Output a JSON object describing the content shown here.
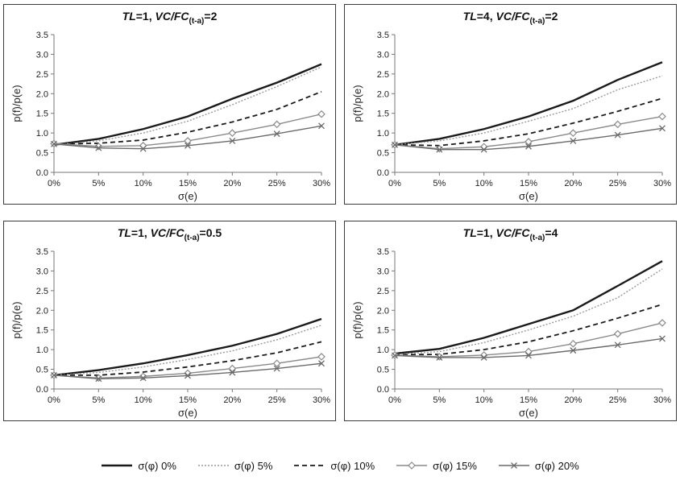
{
  "legend": [
    {
      "label": "σ(φ) 0%",
      "color": "#1a1a1a",
      "dash": "",
      "width": 2.4,
      "marker": "none"
    },
    {
      "label": "σ(φ) 5%",
      "color": "#9a9a9a",
      "dash": "2,2",
      "width": 1.4,
      "marker": "none"
    },
    {
      "label": "σ(φ) 10%",
      "color": "#1a1a1a",
      "dash": "6,4",
      "width": 1.8,
      "marker": "none"
    },
    {
      "label": "σ(φ) 15%",
      "color": "#8a8a8a",
      "dash": "",
      "width": 1.4,
      "marker": "diamond"
    },
    {
      "label": "σ(φ) 20%",
      "color": "#6a6a6a",
      "dash": "",
      "width": 1.4,
      "marker": "x"
    }
  ],
  "chart_data": [
    {
      "type": "line",
      "title": {
        "tl": "TL",
        "tl_val": "=1, ",
        "vc": "VC/FC",
        "sub": "(t-a)",
        "ratio": "=2"
      },
      "xlabel": "σ(e)",
      "ylabel": "p(f)/p(e)",
      "x": [
        0,
        5,
        10,
        15,
        20,
        25,
        30
      ],
      "xticks": [
        "0%",
        "5%",
        "10%",
        "15%",
        "20%",
        "25%",
        "30%"
      ],
      "yticks": [
        "0.0",
        "0.5",
        "1.0",
        "1.5",
        "2.0",
        "2.5",
        "3.0",
        "3.5"
      ],
      "ylim": [
        0,
        3.5
      ],
      "series": [
        {
          "name": "σ(φ) 0%",
          "values": [
            0.7,
            0.85,
            1.1,
            1.42,
            1.87,
            2.28,
            2.75
          ]
        },
        {
          "name": "σ(φ) 5%",
          "values": [
            0.7,
            0.8,
            1.0,
            1.3,
            1.72,
            2.18,
            2.68
          ]
        },
        {
          "name": "σ(φ) 10%",
          "values": [
            0.72,
            0.74,
            0.82,
            1.02,
            1.28,
            1.6,
            2.05
          ]
        },
        {
          "name": "σ(φ) 15%",
          "values": [
            0.73,
            0.66,
            0.68,
            0.8,
            1.0,
            1.22,
            1.48
          ]
        },
        {
          "name": "σ(φ) 20%",
          "values": [
            0.72,
            0.62,
            0.6,
            0.68,
            0.8,
            0.98,
            1.18
          ]
        }
      ]
    },
    {
      "type": "line",
      "title": {
        "tl": "TL",
        "tl_val": "=4, ",
        "vc": "VC/FC",
        "sub": "(t-a)",
        "ratio": "=2"
      },
      "xlabel": "σ(e)",
      "ylabel": "p(f)/p(e)",
      "x": [
        0,
        5,
        10,
        15,
        20,
        25,
        30
      ],
      "xticks": [
        "0%",
        "5%",
        "10%",
        "15%",
        "20%",
        "25%",
        "30%"
      ],
      "yticks": [
        "0.0",
        "0.5",
        "1.0",
        "1.5",
        "2.0",
        "2.5",
        "3.0",
        "3.5"
      ],
      "ylim": [
        0,
        3.5
      ],
      "series": [
        {
          "name": "σ(φ) 0%",
          "values": [
            0.7,
            0.85,
            1.1,
            1.42,
            1.82,
            2.35,
            2.8
          ]
        },
        {
          "name": "σ(φ) 5%",
          "values": [
            0.7,
            0.8,
            1.0,
            1.3,
            1.62,
            2.1,
            2.45
          ]
        },
        {
          "name": "σ(φ) 10%",
          "values": [
            0.7,
            0.68,
            0.8,
            0.98,
            1.25,
            1.55,
            1.88
          ]
        },
        {
          "name": "σ(φ) 15%",
          "values": [
            0.7,
            0.6,
            0.65,
            0.78,
            1.0,
            1.22,
            1.42
          ]
        },
        {
          "name": "σ(φ) 20%",
          "values": [
            0.7,
            0.58,
            0.58,
            0.66,
            0.8,
            0.95,
            1.12
          ]
        }
      ]
    },
    {
      "type": "line",
      "title": {
        "tl": "TL",
        "tl_val": "=1, ",
        "vc": "VC/FC",
        "sub": "(t-a)",
        "ratio": "=0.5"
      },
      "xlabel": "σ(e)",
      "ylabel": "p(f)/p(e)",
      "x": [
        0,
        5,
        10,
        15,
        20,
        25,
        30
      ],
      "xticks": [
        "0%",
        "5%",
        "10%",
        "15%",
        "20%",
        "25%",
        "30%"
      ],
      "yticks": [
        "0.0",
        "0.5",
        "1.0",
        "1.5",
        "2.0",
        "2.5",
        "3.0",
        "3.5"
      ],
      "ylim": [
        0,
        3.5
      ],
      "series": [
        {
          "name": "σ(φ) 0%",
          "values": [
            0.35,
            0.48,
            0.65,
            0.86,
            1.1,
            1.4,
            1.78
          ]
        },
        {
          "name": "σ(φ) 5%",
          "values": [
            0.35,
            0.42,
            0.56,
            0.75,
            0.97,
            1.25,
            1.62
          ]
        },
        {
          "name": "σ(φ) 10%",
          "values": [
            0.35,
            0.35,
            0.43,
            0.56,
            0.72,
            0.92,
            1.2
          ]
        },
        {
          "name": "σ(φ) 15%",
          "values": [
            0.35,
            0.28,
            0.32,
            0.4,
            0.52,
            0.65,
            0.82
          ]
        },
        {
          "name": "σ(φ) 20%",
          "values": [
            0.35,
            0.26,
            0.28,
            0.34,
            0.42,
            0.52,
            0.65
          ]
        }
      ]
    },
    {
      "type": "line",
      "title": {
        "tl": "TL",
        "tl_val": "=1, ",
        "vc": "VC/FC",
        "sub": "(t-a)",
        "ratio": "=4"
      },
      "xlabel": "σ(e)",
      "ylabel": "p(f)/p(e)",
      "x": [
        0,
        5,
        10,
        15,
        20,
        25,
        30
      ],
      "xticks": [
        "0%",
        "5%",
        "10%",
        "15%",
        "20%",
        "25%",
        "30%"
      ],
      "yticks": [
        "0.0",
        "0.5",
        "1.0",
        "1.5",
        "2.0",
        "2.5",
        "3.0",
        "3.5"
      ],
      "ylim": [
        0,
        3.5
      ],
      "series": [
        {
          "name": "σ(φ) 0%",
          "values": [
            0.9,
            1.02,
            1.3,
            1.65,
            2.0,
            2.62,
            3.25
          ]
        },
        {
          "name": "σ(φ) 5%",
          "values": [
            0.88,
            0.95,
            1.18,
            1.5,
            1.85,
            2.32,
            3.05
          ]
        },
        {
          "name": "σ(φ) 10%",
          "values": [
            0.87,
            0.88,
            1.0,
            1.2,
            1.48,
            1.8,
            2.15
          ]
        },
        {
          "name": "σ(φ) 15%",
          "values": [
            0.86,
            0.82,
            0.86,
            0.95,
            1.15,
            1.4,
            1.68
          ]
        },
        {
          "name": "σ(φ) 20%",
          "values": [
            0.85,
            0.8,
            0.8,
            0.85,
            0.98,
            1.12,
            1.28
          ]
        }
      ]
    }
  ]
}
